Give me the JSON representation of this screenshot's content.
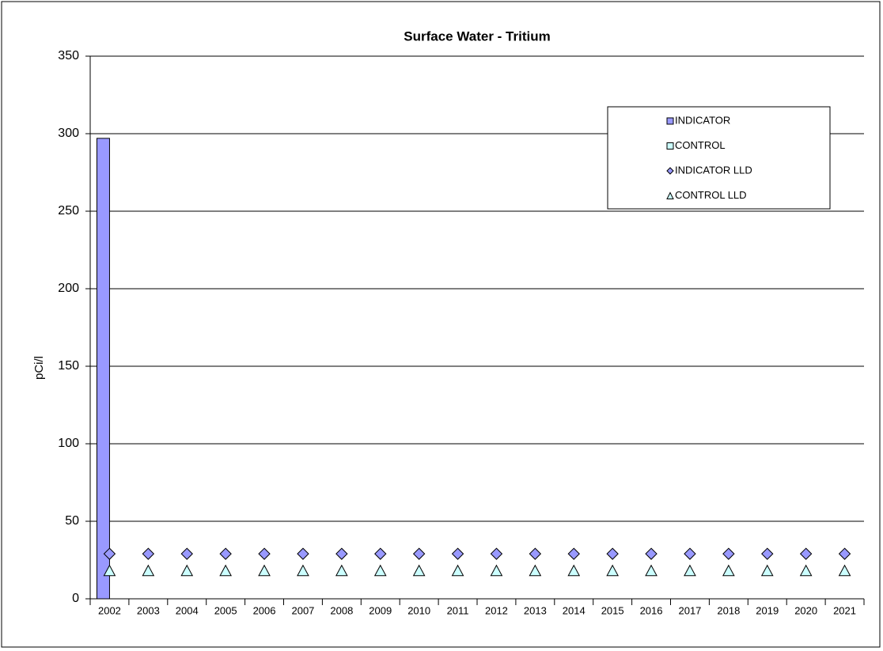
{
  "chart_data": {
    "type": "bar",
    "title": "Surface Water - Tritium",
    "ylabel": "pCi/l",
    "categories": [
      "2002",
      "2003",
      "2004",
      "2005",
      "2006",
      "2007",
      "2008",
      "2009",
      "2010",
      "2011",
      "2012",
      "2013",
      "2014",
      "2015",
      "2016",
      "2017",
      "2018",
      "2019",
      "2020",
      "2021"
    ],
    "series": [
      {
        "name": "INDICATOR",
        "type": "bar",
        "color": "#9999ff",
        "values": [
          297,
          null,
          null,
          null,
          null,
          null,
          null,
          null,
          null,
          null,
          null,
          null,
          null,
          null,
          null,
          null,
          null,
          null,
          null,
          null
        ]
      },
      {
        "name": "CONTROL",
        "type": "bar",
        "color": "#ccffff",
        "values": [
          null,
          null,
          null,
          null,
          null,
          null,
          null,
          null,
          null,
          null,
          null,
          null,
          null,
          null,
          null,
          null,
          null,
          null,
          null,
          null
        ]
      },
      {
        "name": "INDICATOR LLD",
        "type": "scatter",
        "marker": "diamond",
        "color": "#9999ff",
        "values": [
          29,
          29,
          29,
          29,
          29,
          29,
          29,
          29,
          29,
          29,
          29,
          29,
          29,
          29,
          29,
          29,
          29,
          29,
          29,
          29
        ]
      },
      {
        "name": "CONTROL LLD",
        "type": "scatter",
        "marker": "triangle",
        "color": "#ccffff",
        "values": [
          18,
          18,
          18,
          18,
          18,
          18,
          18,
          18,
          18,
          18,
          18,
          18,
          18,
          18,
          18,
          18,
          18,
          18,
          18,
          18
        ]
      }
    ],
    "ylim": [
      0,
      350
    ],
    "yticks": [
      0,
      50,
      100,
      150,
      200,
      250,
      300,
      350
    ],
    "grid": true,
    "legend": "upper right"
  }
}
